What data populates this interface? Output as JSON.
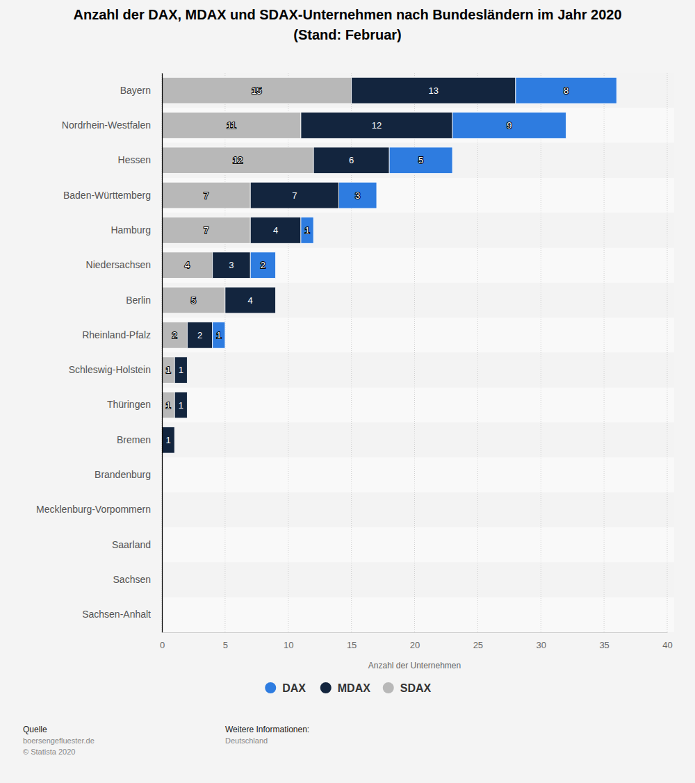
{
  "chart_data": {
    "type": "bar",
    "orientation": "horizontal",
    "stacked": true,
    "data_labels": true,
    "grid": true,
    "legend": "bottom",
    "title": "Anzahl der DAX, MDAX und SDAX-Unternehmen nach Bundesländern im Jahr 2020",
    "subtitle": "(Stand: Februar)",
    "x_label": "Anzahl der Unternehmen",
    "categories": [
      "Bayern",
      "Nordrhein-Westfalen",
      "Hessen",
      "Baden-Württemberg",
      "Hamburg",
      "Niedersachsen",
      "Berlin",
      "Rheinland-Pfalz",
      "Schleswig-Holstein",
      "Thüringen",
      "Bremen",
      "Brandenburg",
      "Mecklenburg-Vorpommern",
      "Saarland",
      "Sachsen",
      "Sachsen-Anhalt"
    ],
    "series": [
      {
        "name": "SDAX",
        "color": "#b8b8b8",
        "values": [
          15,
          11,
          12,
          7,
          7,
          4,
          5,
          2,
          1,
          1,
          null,
          null,
          null,
          null,
          null,
          null
        ]
      },
      {
        "name": "MDAX",
        "color": "#13253e",
        "values": [
          13,
          12,
          6,
          7,
          4,
          3,
          4,
          2,
          1,
          1,
          1,
          null,
          null,
          null,
          null,
          null
        ]
      },
      {
        "name": "DAX",
        "color": "#2e7ce0",
        "values": [
          8,
          9,
          5,
          3,
          1,
          2,
          null,
          1,
          null,
          null,
          null,
          null,
          null,
          null,
          null,
          null
        ]
      }
    ],
    "xlim": [
      0,
      40
    ],
    "xticks": [
      0,
      5,
      10,
      15,
      20,
      25,
      30,
      35,
      40
    ],
    "annotations": [
      "Quelle",
      "boersengefluester.de",
      "© Statista 2020",
      "Weitere Informationen:",
      "Deutschland"
    ]
  }
}
